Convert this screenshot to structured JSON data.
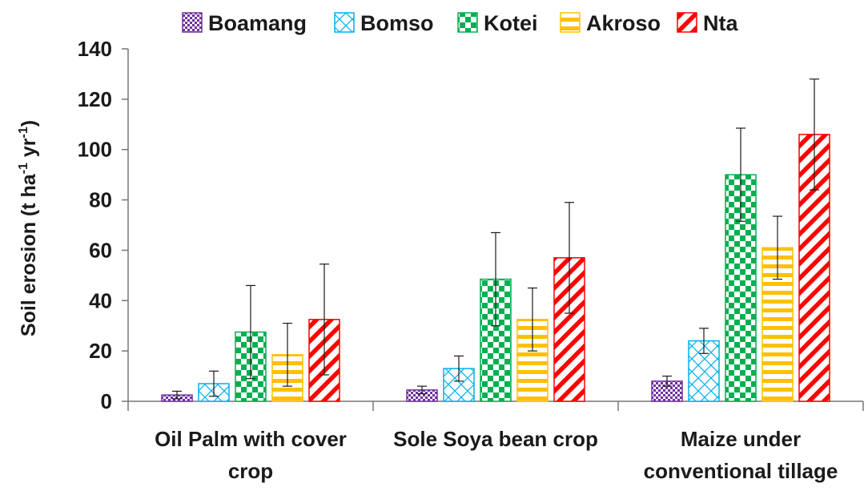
{
  "chart_data": {
    "type": "bar",
    "title": "",
    "xlabel": "",
    "ylabel_main": "Soil erosion (t ha",
    "ylabel_sup1": "-1",
    "ylabel_mid": " yr",
    "ylabel_sup2": "-1",
    "ylabel_end": ")",
    "ylim": [
      0,
      140
    ],
    "yticks": [
      "0",
      "20",
      "40",
      "60",
      "80",
      "100",
      "120",
      "140"
    ],
    "grid": false,
    "legend_position": "top",
    "categories": [
      [
        "Oil Palm with cover",
        "crop"
      ],
      [
        "Sole Soya bean crop"
      ],
      [
        "Maize under",
        "conventional tillage"
      ]
    ],
    "series": [
      {
        "name": "Boamang",
        "color": "#7030a0",
        "pattern": "checker-small",
        "values": [
          2.5,
          4.5,
          8
        ],
        "errors": [
          1.5,
          1.5,
          2
        ]
      },
      {
        "name": "Bomso",
        "color": "#00b0f0",
        "pattern": "diamond-lattice",
        "values": [
          7,
          13,
          24
        ],
        "errors": [
          5,
          5,
          5
        ]
      },
      {
        "name": "Kotei",
        "color": "#00b050",
        "pattern": "checker-large",
        "values": [
          27.5,
          48.5,
          90
        ],
        "errors": [
          18.5,
          18.5,
          18.5
        ]
      },
      {
        "name": "Akroso",
        "color": "#ffc000",
        "pattern": "horizontal-lines",
        "values": [
          18.5,
          32.5,
          61
        ],
        "errors": [
          12.5,
          12.5,
          12.5
        ]
      },
      {
        "name": "Nta",
        "color": "#ff0000",
        "pattern": "diagonal-stripes",
        "values": [
          32.5,
          57,
          106
        ],
        "errors": [
          22,
          22,
          22
        ]
      }
    ]
  }
}
